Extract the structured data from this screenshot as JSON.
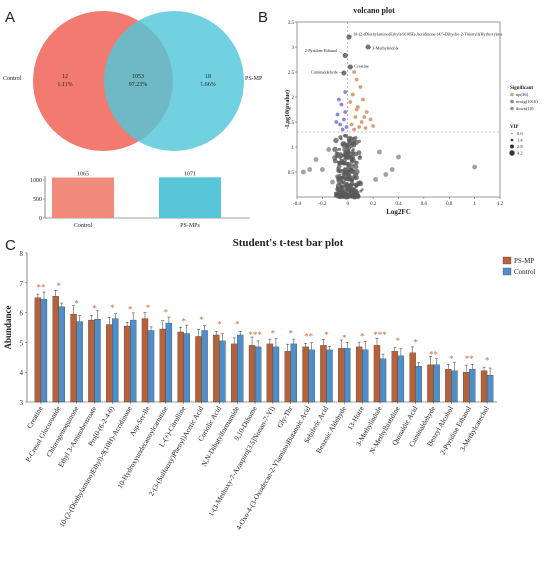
{
  "panels": {
    "a": "A",
    "b": "B",
    "c": "C"
  },
  "chart_data": [
    {
      "type": "venn",
      "sets": [
        {
          "name": "Control",
          "color": "#f26b62"
        },
        {
          "name": "PS-MP",
          "color": "#52c7d9"
        }
      ],
      "regions": [
        {
          "set": "Control only",
          "count": "12",
          "percent": "1.11%"
        },
        {
          "set": "Both",
          "count": "1053",
          "percent": "97.23%"
        },
        {
          "set": "PS-MP only",
          "count": "18",
          "percent": "1.66%"
        }
      ]
    },
    {
      "type": "bar",
      "categories": [
        "Control",
        "PS-MPs"
      ],
      "values": [
        1065,
        1071
      ],
      "value_labels": [
        "1065",
        "1071"
      ],
      "ylim": [
        0,
        1000
      ],
      "yticks": [
        "0",
        "500",
        "1000"
      ],
      "colors": [
        "#f08a7a",
        "#58c6d8"
      ]
    },
    {
      "type": "scatter",
      "title": "volcano plot",
      "xlabel": "Log2FC",
      "ylabel": "-Log10(pvalue)",
      "xlim": [
        -0.4,
        1.2
      ],
      "ylim": [
        0,
        3.5
      ],
      "xticks": [
        -0.4,
        -0.2,
        0,
        0.2,
        0.4,
        0.6,
        0.8,
        1,
        1.2
      ],
      "yticks": [
        0.5,
        1,
        1.5,
        2,
        2.5,
        3,
        3.5
      ],
      "threshold_y": 1.3,
      "threshold_x": 0,
      "legend": {
        "title": "Significant",
        "groups": [
          {
            "label": "up(36)",
            "color": "#d9a07a"
          },
          {
            "label": "nosig(1016)",
            "color": "#8a8a8a"
          },
          {
            "label": "down(10)",
            "color": "#8c86d8"
          }
        ],
        "vip_title": "VIP",
        "vip_levels": [
          "0.0",
          "1.4",
          "2.8",
          "4.2"
        ]
      },
      "labeled_points": [
        {
          "label": "10-(2-(Diethylamino)Ethyl)-9(10H)-Acridinone (4,5-Dihydro-2-Thienyl)(Hydroxy)me",
          "x": 0.01,
          "y": 3.2
        },
        {
          "label": "3-Methylindole",
          "x": 0.16,
          "y": 3.0
        },
        {
          "label": "2-Pyridine Ethanol",
          "x": -0.02,
          "y": 2.83
        },
        {
          "label": "Creatine",
          "x": 0.02,
          "y": 2.6
        },
        {
          "label": "Cuminaldehyde",
          "x": -0.03,
          "y": 2.48
        }
      ],
      "up_points": [
        [
          0.05,
          2.5
        ],
        [
          0.07,
          2.35
        ],
        [
          0.1,
          2.2
        ],
        [
          0.04,
          2.05
        ],
        [
          0.12,
          1.95
        ],
        [
          0.08,
          1.8
        ],
        [
          0.15,
          1.7
        ],
        [
          0.06,
          1.6
        ],
        [
          0.18,
          1.55
        ],
        [
          0.11,
          1.5
        ],
        [
          0.03,
          1.45
        ],
        [
          0.09,
          1.4
        ],
        [
          0.14,
          1.38
        ],
        [
          0.2,
          1.42
        ],
        [
          0.05,
          1.35
        ],
        [
          0.13,
          1.6
        ],
        [
          0.07,
          1.75
        ],
        [
          0.02,
          1.9
        ]
      ],
      "down_points": [
        [
          -0.02,
          2.1
        ],
        [
          -0.05,
          1.85
        ],
        [
          -0.08,
          1.65
        ],
        [
          -0.03,
          1.55
        ],
        [
          -0.06,
          1.45
        ],
        [
          -0.01,
          1.4
        ],
        [
          -0.04,
          1.35
        ],
        [
          -0.07,
          1.95
        ],
        [
          -0.02,
          1.7
        ],
        [
          -0.09,
          1.5
        ]
      ],
      "nosig_extra": [
        [
          1.0,
          0.6
        ],
        [
          0.4,
          0.8
        ],
        [
          0.35,
          0.55
        ],
        [
          -0.2,
          0.55
        ],
        [
          -0.35,
          0.5
        ],
        [
          -0.3,
          0.55
        ],
        [
          -0.15,
          0.95
        ],
        [
          0.25,
          0.9
        ],
        [
          -0.25,
          0.75
        ],
        [
          0.3,
          0.45
        ],
        [
          0.22,
          0.35
        ],
        [
          -0.12,
          0.3
        ]
      ]
    },
    {
      "type": "bar",
      "title": "Student's t-test bar plot",
      "ylabel": "Abundance",
      "ylim": [
        3,
        8
      ],
      "yticks": [
        "3",
        "4",
        "5",
        "6",
        "7",
        "8"
      ],
      "legend": [
        {
          "name": "PS-MP",
          "color": "#b5613a"
        },
        {
          "name": "Control",
          "color": "#4e8fc9"
        }
      ],
      "categories": [
        "Creatine",
        "P-Cresol Glucuronide",
        "Chlorogenoquinone",
        "Ethyl 3-Aminobenzoate",
        "Pro[0-(6-2-4-0)",
        "10-(2-(Diethylamino)Ethyl)-9(10H)-Acridinone",
        "Asp-Ser-lle",
        "10-Hydroxyundecanoylcarnitine",
        "L-(+)-Citrulline",
        "2-(3-(Sulfooxy)Phenyl)Acetic Acid",
        "Coriolic Acid",
        "N,N-Dibutylformamide",
        "9,10-Dihome",
        "1-(3-Methoxy-7-Azaspiro[3.5]Nonan-7-Yl)",
        "Gly-Thr",
        "4-Oxo-4-(3-Oxodecan-2-Ylamino)Butanoic Acid",
        "Sebiferic Acid",
        "Benzoic Aldehyde",
        "13-Hotre",
        "3-Methylindole",
        "N-Methylhistidine",
        "Quinaldic Acid",
        "Cuminaldehyde",
        "Benzyl Alcohol",
        "2-Pyridine Ethanol",
        "3-Methylcatechol"
      ],
      "series": [
        {
          "name": "PS-MP",
          "values": [
            6.5,
            6.55,
            5.95,
            5.75,
            5.6,
            5.55,
            5.8,
            5.45,
            5.35,
            5.2,
            5.25,
            4.95,
            4.9,
            4.95,
            4.7,
            4.85,
            4.9,
            4.8,
            4.85,
            4.9,
            4.7,
            4.65,
            4.25,
            4.1,
            4.0,
            4.05
          ]
        },
        {
          "name": "Control",
          "values": [
            6.45,
            6.2,
            5.7,
            5.78,
            5.8,
            5.75,
            5.4,
            5.65,
            5.3,
            5.4,
            5.05,
            5.25,
            4.85,
            4.85,
            4.95,
            4.75,
            4.75,
            4.8,
            4.75,
            4.45,
            4.55,
            4.2,
            4.25,
            4.05,
            4.1,
            3.9
          ]
        }
      ],
      "significance": [
        "**",
        "*",
        "*",
        "*",
        "*",
        "*",
        "*",
        "*",
        "*",
        "*",
        "*",
        "*",
        "***",
        "*",
        "*",
        "**",
        "*",
        "*",
        "*",
        "***",
        "*",
        "*",
        "**",
        "*",
        "**",
        "*"
      ]
    }
  ]
}
